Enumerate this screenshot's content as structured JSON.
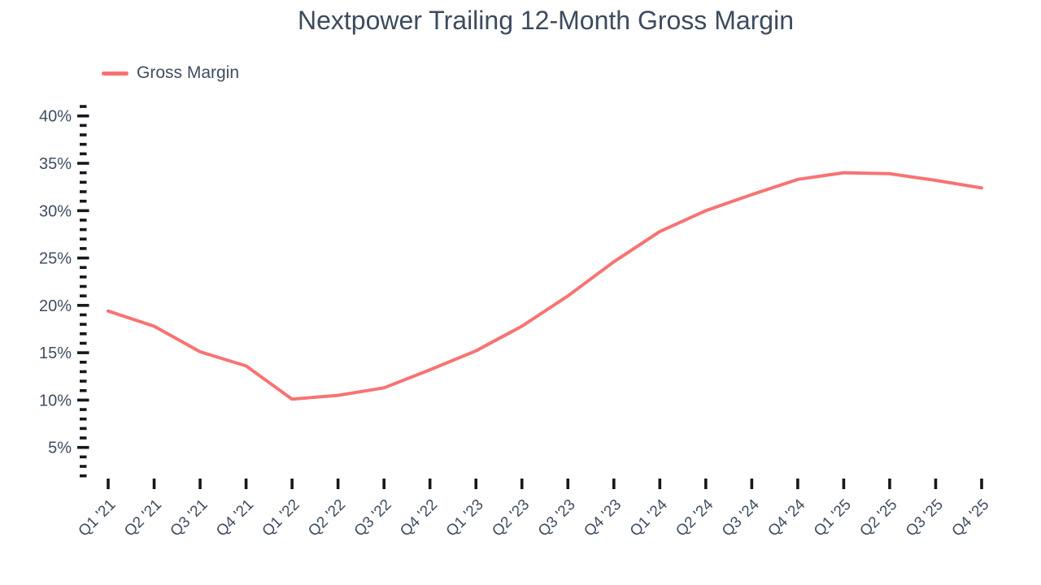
{
  "chart_data": {
    "type": "line",
    "title": "Nextpower Trailing 12-Month Gross Margin",
    "legend_position": "top-left",
    "grid": false,
    "background": "#ffffff",
    "categories": [
      "Q1 '21",
      "Q2 '21",
      "Q3 '21",
      "Q4 '21",
      "Q1 '22",
      "Q2 '22",
      "Q3 '22",
      "Q4 '22",
      "Q1 '23",
      "Q2 '23",
      "Q3 '23",
      "Q4 '23",
      "Q1 '24",
      "Q2 '24",
      "Q3 '24",
      "Q4 '24",
      "Q1 '25",
      "Q2 '25",
      "Q3 '25",
      "Q4 '25"
    ],
    "series": [
      {
        "name": "Gross Margin",
        "color": "#f77373",
        "values": [
          19.4,
          17.8,
          15.1,
          13.6,
          10.1,
          10.5,
          11.3,
          13.2,
          15.2,
          17.8,
          21.0,
          24.6,
          27.8,
          30.0,
          31.7,
          33.3,
          34.0,
          33.9,
          33.2,
          32.4
        ]
      }
    ],
    "y_axis": {
      "unit": "%",
      "label_format": "{v}%",
      "major_ticks": [
        5,
        10,
        15,
        20,
        25,
        30,
        35,
        40
      ],
      "minor_step": 1,
      "tick_range": [
        2,
        41
      ],
      "major_tick_labels": [
        "5%",
        "10%",
        "15%",
        "20%",
        "25%",
        "30%",
        "35%",
        "40%"
      ]
    },
    "x_axis": {
      "tick_labels_rotation_deg": -45
    },
    "colors": {
      "line": "#f77373",
      "text": "#3f4d61",
      "title": "#3d4b5f",
      "tick": "#15191e"
    }
  }
}
